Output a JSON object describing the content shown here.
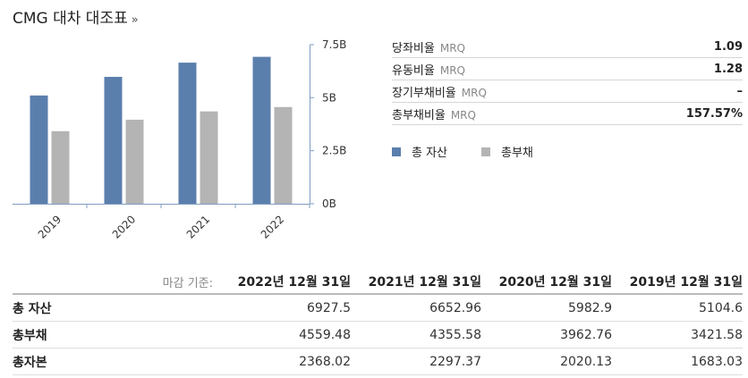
{
  "header": {
    "title": "CMG 대차 대조표",
    "more": "»"
  },
  "chart_data": {
    "type": "bar",
    "categories": [
      "2019",
      "2020",
      "2021",
      "2022"
    ],
    "series": [
      {
        "name": "총 자산",
        "values": [
          5104.6,
          5982.9,
          6652.96,
          6927.5
        ],
        "color": "#5b7fad"
      },
      {
        "name": "총부채",
        "values": [
          3421.58,
          3962.76,
          4355.58,
          4559.48
        ],
        "color": "#b4b4b4"
      }
    ],
    "ylim": [
      0,
      7500
    ],
    "yticks": [
      0,
      2500,
      5000,
      7500
    ],
    "ytick_labels": [
      "0B",
      "2.5B",
      "5B",
      "7.5B"
    ],
    "grid": false,
    "legend_placement": "right"
  },
  "ratios": [
    {
      "label": "당좌비율",
      "unit": "MRQ",
      "value": "1.09"
    },
    {
      "label": "유동비율",
      "unit": "MRQ",
      "value": "1.28"
    },
    {
      "label": "장기부채비율",
      "unit": "MRQ",
      "value": "–"
    },
    {
      "label": "총부채비율",
      "unit": "MRQ",
      "value": "157.57%"
    }
  ],
  "legend": [
    {
      "label": "총 자산",
      "color": "#5b7fad"
    },
    {
      "label": "총부채",
      "color": "#b4b4b4"
    }
  ],
  "table": {
    "basis_label": "마감 기준:",
    "columns": [
      "2022년 12월 31일",
      "2021년 12월 31일",
      "2020년 12월 31일",
      "2019년 12월 31일"
    ],
    "rows": [
      {
        "label": "총 자산",
        "values": [
          "6927.5",
          "6652.96",
          "5982.9",
          "5104.6"
        ]
      },
      {
        "label": "총부채",
        "values": [
          "4559.48",
          "4355.58",
          "3962.76",
          "3421.58"
        ]
      },
      {
        "label": "총자본",
        "values": [
          "2368.02",
          "2297.37",
          "2020.13",
          "1683.03"
        ]
      }
    ]
  }
}
